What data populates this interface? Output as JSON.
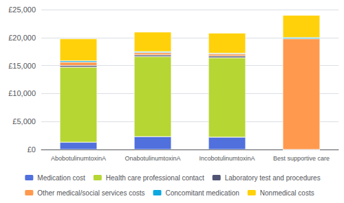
{
  "chart_data": {
    "type": "bar",
    "stacked": true,
    "grid": true,
    "legend": "bottom",
    "categories": [
      "AbobotulinumtoxinA",
      "OnabotulinumtoxinA",
      "IncobotulinumtoxinA",
      "Best supportive care"
    ],
    "series": [
      {
        "name": "Medication cost",
        "values": [
          1300,
          2300,
          2200,
          0
        ]
      },
      {
        "name": "Health care professional contact",
        "values": [
          13400,
          14300,
          14200,
          0
        ]
      },
      {
        "name": "Laboratory test and procedures",
        "values": [
          300,
          300,
          300,
          0
        ]
      },
      {
        "name": "Other medical/social services costs",
        "values": [
          600,
          400,
          350,
          19800
        ]
      },
      {
        "name": "Concomitant medication",
        "values": [
          250,
          200,
          150,
          200
        ]
      },
      {
        "name": "Nonmedical costs",
        "values": [
          3950,
          3500,
          3600,
          4000
        ]
      }
    ],
    "ylim": [
      0,
      25000
    ],
    "yticks": [
      {
        "value": 0,
        "label": "£0"
      },
      {
        "value": 5000,
        "label": "£5,000"
      },
      {
        "value": 10000,
        "label": "£10,000"
      },
      {
        "value": 15000,
        "label": "£15,000"
      },
      {
        "value": 20000,
        "label": "£20,000"
      },
      {
        "value": 25000,
        "label": "£25,000"
      }
    ]
  }
}
